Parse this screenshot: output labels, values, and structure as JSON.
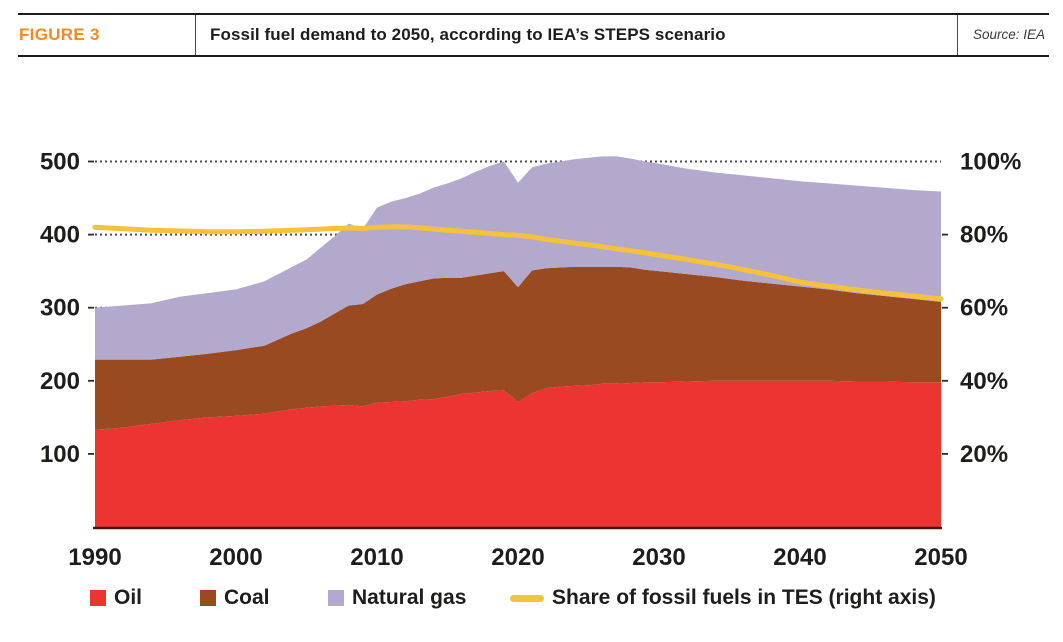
{
  "header": {
    "figure_label": "FIGURE 3",
    "title": "Fossil fuel demand to 2050, according to IEA’s STEPS scenario",
    "source": "Source: IEA"
  },
  "legend": {
    "items": [
      {
        "label": "Oil",
        "color": "#ec3432",
        "swatch": "square"
      },
      {
        "label": "Coal",
        "color": "#9a4a20",
        "swatch": "square"
      },
      {
        "label": "Natural gas",
        "color": "#b3a9cd",
        "swatch": "square"
      },
      {
        "label": "Share of fossil fuels in TES (right axis)",
        "color": "#f6c23c",
        "swatch": "dash"
      }
    ]
  },
  "chart_data": {
    "type": "area",
    "stacked": true,
    "title": "Fossil fuel demand to 2050, according to IEA's STEPS scenario",
    "grid": "dotted horizontal at 300, 400, 500",
    "legend_position": "bottom",
    "x": [
      1990,
      1992,
      1994,
      1996,
      1998,
      2000,
      2002,
      2004,
      2005,
      2006,
      2007,
      2008,
      2009,
      2010,
      2011,
      2012,
      2013,
      2014,
      2015,
      2016,
      2017,
      2018,
      2019,
      2020,
      2021,
      2022,
      2023,
      2024,
      2025,
      2026,
      2027,
      2028,
      2029,
      2030,
      2032,
      2034,
      2036,
      2038,
      2040,
      2042,
      2044,
      2046,
      2048,
      2050
    ],
    "series": [
      {
        "name": "Oil",
        "color": "#ec3432",
        "values": [
          133,
          136,
          141,
          146,
          150,
          152,
          155,
          161,
          163,
          165,
          166,
          167,
          165,
          170,
          171,
          172,
          174,
          175,
          178,
          182,
          184,
          186,
          187,
          171,
          183,
          190,
          192,
          193,
          194,
          196,
          196,
          197,
          198,
          198,
          199,
          200,
          200,
          200,
          200,
          200,
          199,
          199,
          198,
          198
        ]
      },
      {
        "name": "Coal",
        "color": "#9a4a20",
        "values": [
          96,
          93,
          88,
          87,
          87,
          90,
          93,
          104,
          109,
          116,
          126,
          136,
          140,
          148,
          155,
          160,
          162,
          165,
          163,
          159,
          160,
          161,
          163,
          157,
          168,
          164,
          163,
          163,
          162,
          160,
          160,
          158,
          154,
          152,
          147,
          142,
          137,
          133,
          129,
          125,
          121,
          117,
          114,
          110
        ]
      },
      {
        "name": "Natural gas",
        "color": "#b3a9cd",
        "values": [
          71,
          74,
          77,
          82,
          83,
          83,
          88,
          91,
          94,
          101,
          106,
          112,
          103,
          119,
          119,
          118,
          120,
          124,
          129,
          136,
          142,
          147,
          150,
          143,
          141,
          143,
          145,
          147,
          149,
          151,
          151,
          149,
          148,
          147,
          144,
          143,
          144,
          144,
          144,
          145,
          147,
          148,
          149,
          151
        ]
      }
    ],
    "line_series": {
      "name": "Share of fossil fuels in TES (right axis)",
      "color": "#f6c23c",
      "axis": "right",
      "values_percent": [
        82.0,
        81.6,
        81.2,
        81.0,
        80.8,
        80.8,
        80.9,
        81.2,
        81.3,
        81.5,
        81.7,
        81.8,
        81.7,
        82.0,
        82.1,
        82.1,
        81.9,
        81.5,
        81.2,
        80.9,
        80.6,
        80.3,
        80.0,
        79.8,
        79.4,
        78.7,
        78.2,
        77.7,
        77.2,
        76.7,
        76.1,
        75.6,
        75.0,
        74.4,
        73.2,
        71.9,
        70.4,
        68.8,
        67.0,
        65.9,
        64.9,
        64.0,
        63.2,
        62.4
      ]
    },
    "left_axis": {
      "ticks": [
        100,
        200,
        300,
        400,
        500
      ],
      "tick_labels": [
        "100",
        "200",
        "300",
        "400",
        "500"
      ],
      "range": [
        0,
        520
      ]
    },
    "right_axis": {
      "ticks": [
        20,
        40,
        60,
        80,
        100
      ],
      "tick_labels": [
        "20%",
        "40%",
        "60%",
        "80%",
        "100%"
      ],
      "range_percent": [
        0,
        104
      ]
    },
    "x_axis": {
      "ticks": [
        1990,
        2000,
        2010,
        2020,
        2030,
        2040,
        2050
      ],
      "tick_labels": [
        "1990",
        "2000",
        "2010",
        "2020",
        "2030",
        "2040",
        "2050"
      ],
      "range": [
        1990,
        2050
      ]
    },
    "gridline_values": [
      300,
      400,
      500
    ]
  }
}
